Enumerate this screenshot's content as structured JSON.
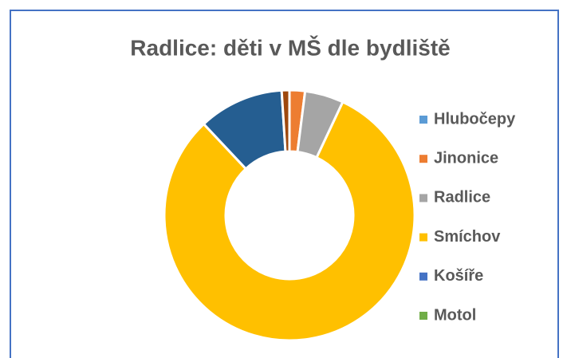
{
  "chart_data": {
    "type": "donut",
    "title": "Radlice: děti v MŠ dle bydliště",
    "categories": [
      "Hlubočepy",
      "Jinonice",
      "Radlice",
      "Smíchov",
      "Košíře",
      "Motol",
      null,
      null
    ],
    "values": [
      0,
      2,
      5,
      81,
      0,
      0,
      11,
      1
    ],
    "colors": [
      "#5b9bd5",
      "#ed7d31",
      "#a5a5a5",
      "#ffc000",
      "#4472c4",
      "#70ad47",
      "#255e91",
      "#9e480e"
    ],
    "legend": "right"
  }
}
